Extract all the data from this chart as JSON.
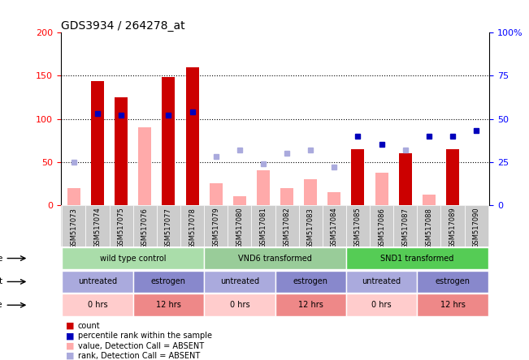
{
  "title": "GDS3934 / 264278_at",
  "samples": [
    "GSM517073",
    "GSM517074",
    "GSM517075",
    "GSM517076",
    "GSM517077",
    "GSM517078",
    "GSM517079",
    "GSM517080",
    "GSM517081",
    "GSM517082",
    "GSM517083",
    "GSM517084",
    "GSM517085",
    "GSM517086",
    "GSM517087",
    "GSM517088",
    "GSM517089",
    "GSM517090"
  ],
  "count_values": [
    null,
    144,
    125,
    null,
    148,
    160,
    null,
    null,
    null,
    null,
    null,
    null,
    65,
    null,
    60,
    null,
    65,
    null
  ],
  "count_absent": [
    20,
    null,
    null,
    90,
    null,
    null,
    25,
    10,
    40,
    20,
    30,
    15,
    null,
    38,
    null,
    12,
    null,
    0
  ],
  "rank_values": [
    null,
    53,
    52,
    null,
    52,
    54,
    null,
    null,
    null,
    null,
    null,
    null,
    40,
    35,
    null,
    40,
    40,
    43
  ],
  "rank_absent": [
    25,
    null,
    null,
    null,
    null,
    null,
    28,
    32,
    24,
    30,
    32,
    22,
    null,
    null,
    32,
    null,
    null,
    null
  ],
  "ylim_left": [
    0,
    200
  ],
  "ylim_right": [
    0,
    100
  ],
  "yticks_left": [
    0,
    50,
    100,
    150,
    200
  ],
  "yticks_right": [
    0,
    25,
    50,
    75,
    100
  ],
  "ytick_labels_left": [
    "0",
    "50",
    "100",
    "150",
    "200"
  ],
  "ytick_labels_right": [
    "0",
    "25",
    "50",
    "75",
    "100%"
  ],
  "cell_line_groups": [
    {
      "label": "wild type control",
      "start": 0,
      "end": 6,
      "color": "#aaddaa"
    },
    {
      "label": "VND6 transformed",
      "start": 6,
      "end": 12,
      "color": "#99cc99"
    },
    {
      "label": "SND1 transformed",
      "start": 12,
      "end": 18,
      "color": "#55cc55"
    }
  ],
  "agent_groups": [
    {
      "label": "untreated",
      "start": 0,
      "end": 3,
      "color": "#aaaadd"
    },
    {
      "label": "estrogen",
      "start": 3,
      "end": 6,
      "color": "#8888cc"
    },
    {
      "label": "untreated",
      "start": 6,
      "end": 9,
      "color": "#aaaadd"
    },
    {
      "label": "estrogen",
      "start": 9,
      "end": 12,
      "color": "#8888cc"
    },
    {
      "label": "untreated",
      "start": 12,
      "end": 15,
      "color": "#aaaadd"
    },
    {
      "label": "estrogen",
      "start": 15,
      "end": 18,
      "color": "#8888cc"
    }
  ],
  "time_groups": [
    {
      "label": "0 hrs",
      "start": 0,
      "end": 3,
      "color": "#ffcccc"
    },
    {
      "label": "12 hrs",
      "start": 3,
      "end": 6,
      "color": "#ee8888"
    },
    {
      "label": "0 hrs",
      "start": 6,
      "end": 9,
      "color": "#ffcccc"
    },
    {
      "label": "12 hrs",
      "start": 9,
      "end": 12,
      "color": "#ee8888"
    },
    {
      "label": "0 hrs",
      "start": 12,
      "end": 15,
      "color": "#ffcccc"
    },
    {
      "label": "12 hrs",
      "start": 15,
      "end": 18,
      "color": "#ee8888"
    }
  ],
  "bar_color_count": "#CC0000",
  "bar_color_count_absent": "#FFAAAA",
  "dot_color_rank": "#0000BB",
  "dot_color_rank_absent": "#AAAADD",
  "bg_color": "#DDDDDD",
  "plot_bg": "#FFFFFF"
}
